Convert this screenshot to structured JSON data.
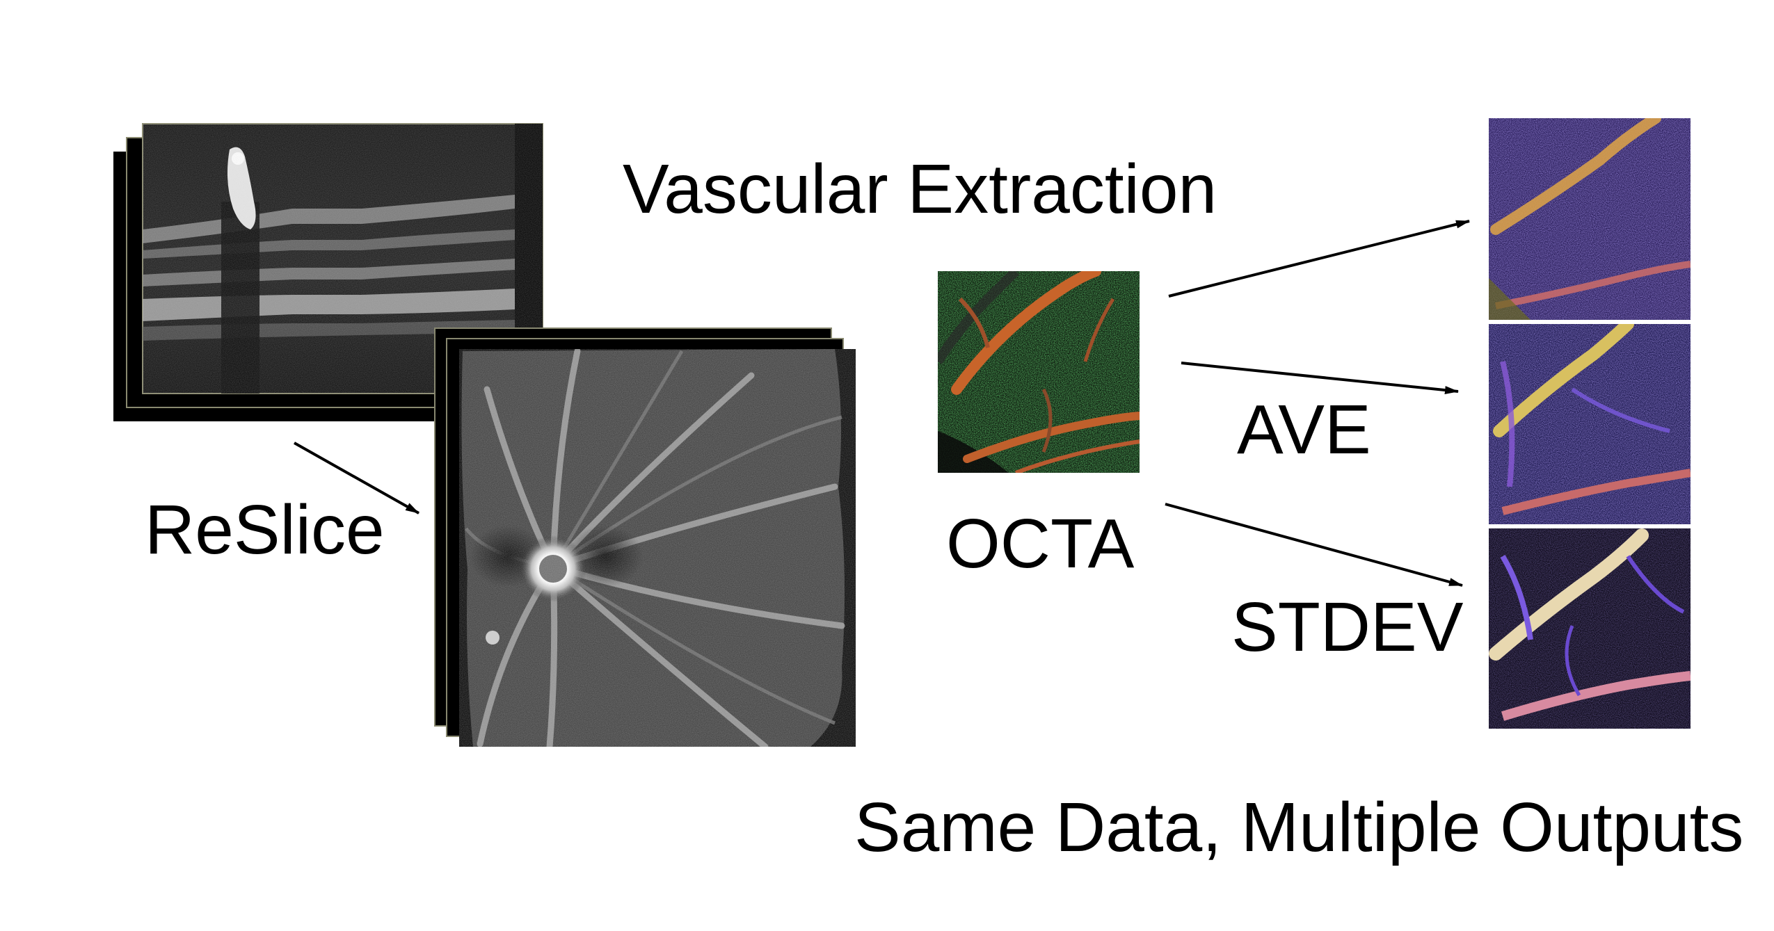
{
  "labels": {
    "vascular_extraction": "Vascular Extraction",
    "reslice": "ReSlice",
    "octa": "OCTA",
    "ave": "AVE",
    "stdev": "STDEV",
    "bottom_caption": "Same Data, Multiple Outputs"
  },
  "colors": {
    "background": "#ffffff",
    "text": "#000000",
    "arrow": "#000000",
    "bscan_background": "#0a0a0a",
    "enface_background": "#2e2e2e",
    "octa_green": "#3fae3a",
    "octa_vessel": "#c8642a",
    "output_blue": "#3a2fa8",
    "output_vessel": "#d8a04a"
  },
  "images": {
    "bscan_stack": "oct-bscan-stack",
    "enface_stack": "oct-enface-stack",
    "octa_image": "octa-color-image",
    "output_top": "vascular-output-image",
    "output_ave": "ave-output-image",
    "output_stdev": "stdev-output-image"
  }
}
